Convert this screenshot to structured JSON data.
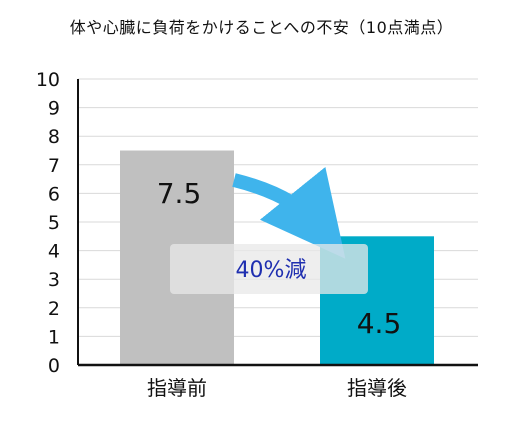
{
  "chart_data": {
    "type": "bar",
    "title": "体や心臓に負荷をかけることへの不安（10点満点）",
    "categories": [
      "指導前",
      "指導後"
    ],
    "values": [
      7.5,
      4.5
    ],
    "value_labels": [
      "7.5",
      "4.5"
    ],
    "colors": [
      "#c0c0c0",
      "#00abc8"
    ],
    "arrow_color": "#3fb4ec",
    "ylim": [
      0,
      10
    ],
    "yticks": [
      0,
      1,
      2,
      3,
      4,
      5,
      6,
      7,
      8,
      9,
      10
    ],
    "grid": true,
    "annotation": "40%減",
    "annotation_color": "#1f2fb0"
  }
}
